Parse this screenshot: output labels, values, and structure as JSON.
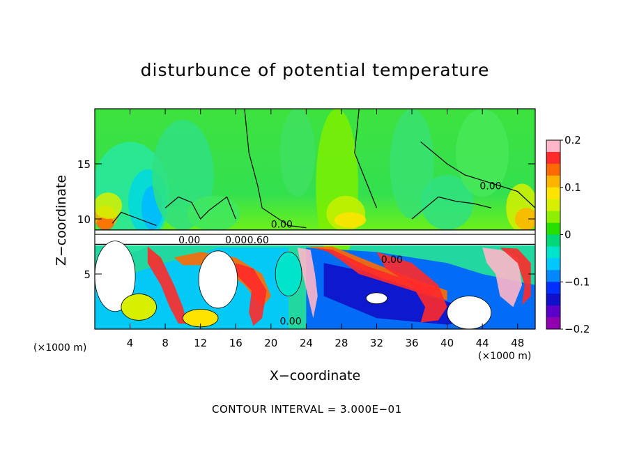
{
  "chart_data": {
    "type": "heatmap",
    "title": "disturbunce of potential temperature",
    "xlabel": "X−coordinate",
    "ylabel": "Z−coordinate",
    "x_unit_left": "(×1000 m)",
    "x_unit_right": "(×1000 m)",
    "xlim": [
      0,
      50
    ],
    "ylim": [
      0,
      20
    ],
    "x_ticks": [
      4,
      8,
      12,
      16,
      20,
      24,
      28,
      32,
      36,
      40,
      44,
      48
    ],
    "x_tick_labels": [
      "4",
      "8",
      "12",
      "16",
      "20",
      "24",
      "28",
      "32",
      "36",
      "40",
      "44",
      "48"
    ],
    "y_ticks": [
      5,
      10,
      15
    ],
    "y_tick_labels": [
      "5",
      "10",
      "15"
    ],
    "colorbar": {
      "min": -0.2,
      "max": 0.2,
      "tick_values": [
        0.2,
        0.1,
        0,
        -0.1,
        -0.2
      ],
      "tick_labels": [
        "0.2",
        "0.1",
        "0",
        "−0.1",
        "−0.2"
      ],
      "colors": [
        "#ffb6c8",
        "#ff2a2a",
        "#ff6a00",
        "#ffb400",
        "#ffe400",
        "#d6f000",
        "#8ef000",
        "#28e000",
        "#00d878",
        "#00e4cc",
        "#00c8ff",
        "#0088ff",
        "#0030ff",
        "#1010c8",
        "#5a00c8",
        "#9000b0"
      ]
    },
    "contour_labels": [
      "0.00",
      "0.00",
      "0.00",
      "0.00",
      "0.60",
      "0.00",
      "0.00"
    ],
    "contour_interval_text": "CONTOUR INTERVAL = 3.000E−01"
  }
}
